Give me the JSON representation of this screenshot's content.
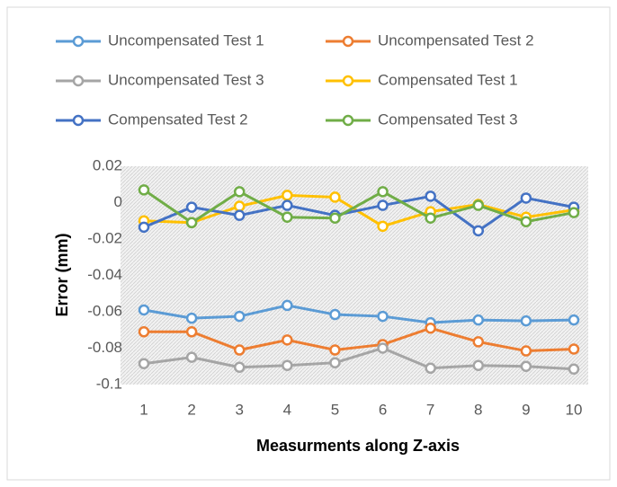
{
  "chart_data": {
    "type": "line",
    "categories": [
      "1",
      "2",
      "3",
      "4",
      "5",
      "6",
      "7",
      "8",
      "9",
      "10"
    ],
    "x_label": "Measurments along Z-axis",
    "y_label": "Error (mm)",
    "ylim": [
      -0.1,
      0.02
    ],
    "yticks": [
      0.02,
      0,
      -0.02,
      -0.04,
      -0.06,
      -0.08,
      -0.1
    ],
    "series": [
      {
        "name": "Uncompensated Test 1",
        "color": "#5b9bd5",
        "values": [
          -0.059,
          -0.0635,
          -0.0625,
          -0.0565,
          -0.0615,
          -0.0625,
          -0.066,
          -0.0645,
          -0.065,
          -0.0645
        ]
      },
      {
        "name": "Uncompensated Test 2",
        "color": "#ed7d31",
        "values": [
          -0.071,
          -0.071,
          -0.081,
          -0.0755,
          -0.081,
          -0.078,
          -0.069,
          -0.0765,
          -0.0815,
          -0.0805
        ]
      },
      {
        "name": "Uncompensated Test 3",
        "color": "#a5a5a5",
        "values": [
          -0.0885,
          -0.085,
          -0.0905,
          -0.0895,
          -0.088,
          -0.08,
          -0.091,
          -0.0895,
          -0.09,
          -0.0915
        ]
      },
      {
        "name": "Compensated Test 1",
        "color": "#ffc000",
        "values": [
          -0.01,
          -0.011,
          -0.002,
          0.004,
          0.003,
          -0.013,
          -0.005,
          -0.001,
          -0.008,
          -0.004
        ]
      },
      {
        "name": "Compensated Test 2",
        "color": "#4472c4",
        "values": [
          -0.0135,
          -0.0025,
          -0.007,
          -0.0015,
          -0.007,
          -0.0015,
          0.0035,
          -0.0155,
          0.0025,
          -0.0025
        ]
      },
      {
        "name": "Compensated Test 3",
        "color": "#70ad47",
        "values": [
          0.007,
          -0.011,
          0.006,
          -0.008,
          -0.0085,
          0.006,
          -0.0085,
          -0.0015,
          -0.0105,
          -0.0055
        ]
      }
    ]
  }
}
